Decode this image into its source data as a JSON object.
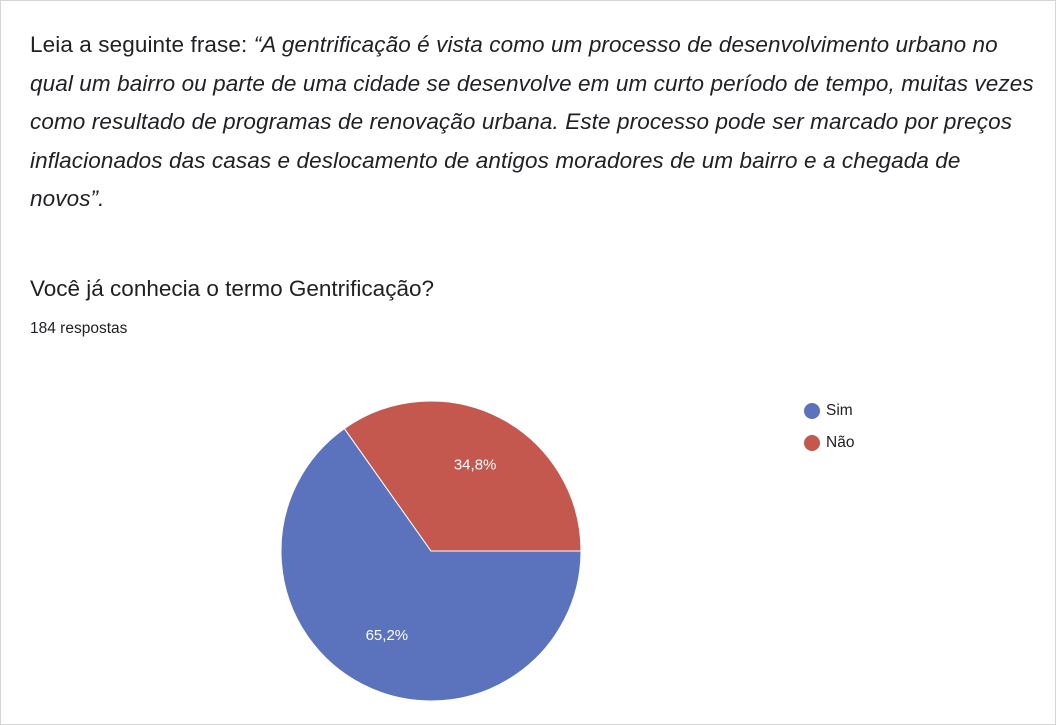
{
  "chart_data": {
    "type": "pie",
    "intro": "Leia a seguinte frase:",
    "quote": "“A gentrificação é vista como um processo de desenvolvimento urbano no qual um bairro ou parte de uma cidade se desenvolve em um curto período de tempo, muitas vezes como resultado de programas de renovação urbana. Este processo pode ser marcado por preços inflacionados das casas e deslocamento de antigos moradores de um bairro e a chegada de novos”.",
    "title": "Você já conhecia o termo Gentrificação?",
    "subtitle": "184 respostas",
    "categories": [
      "Sim",
      "Não"
    ],
    "values": [
      65.2,
      34.8
    ],
    "value_labels": [
      "65,2%",
      "34,8%"
    ],
    "colors": [
      "#5b72bd",
      "#c4574e"
    ],
    "legend": "right"
  }
}
